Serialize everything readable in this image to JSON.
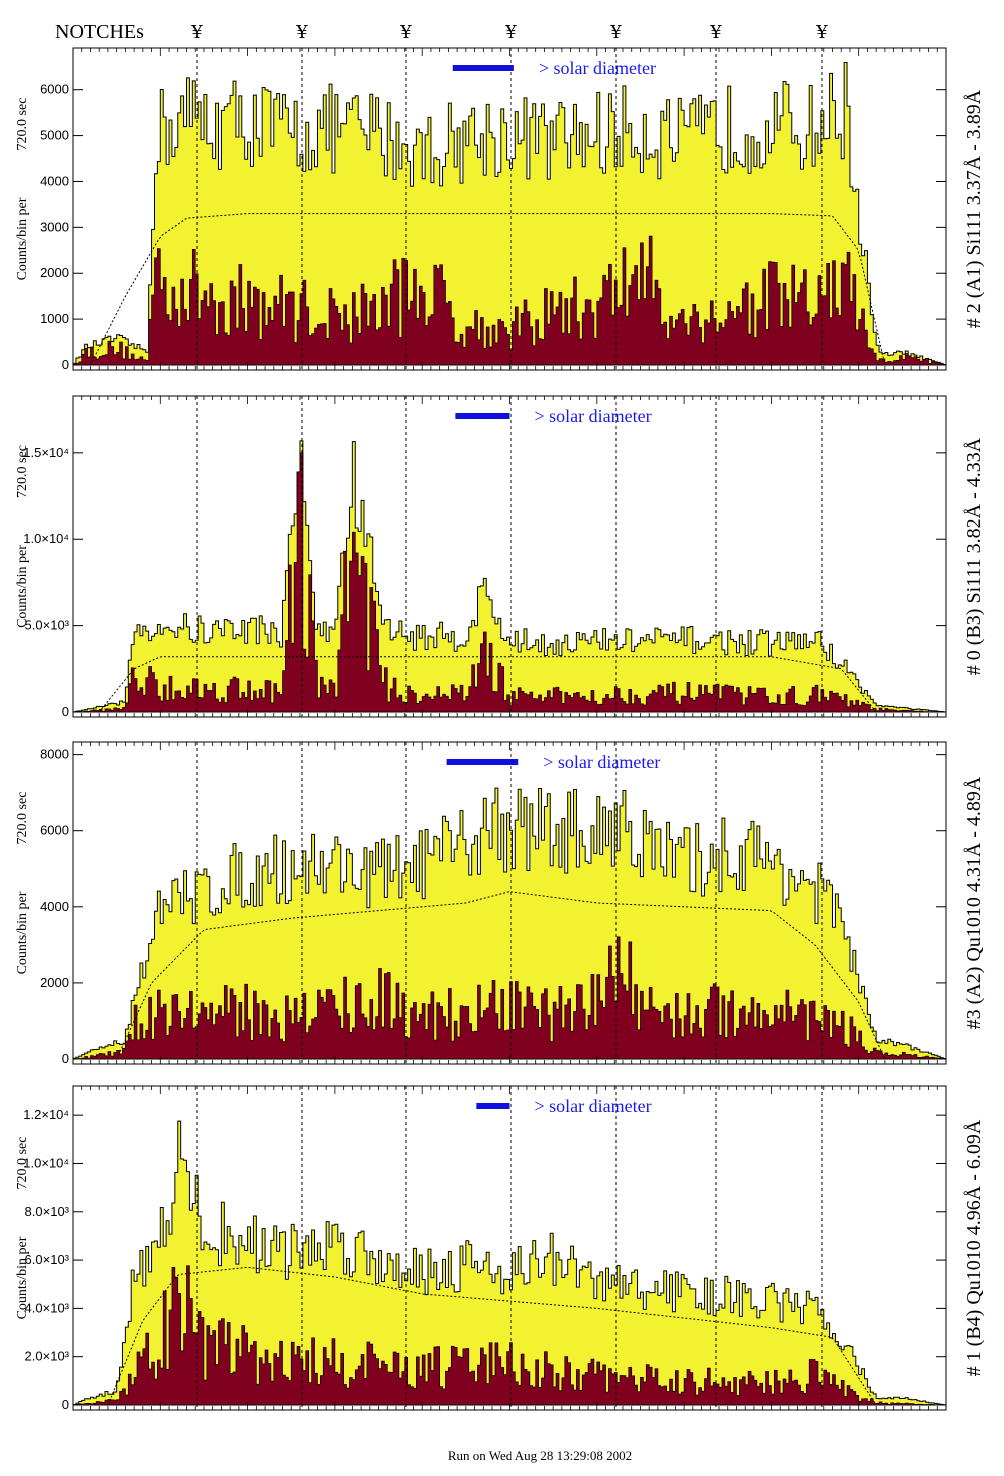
{
  "header": {
    "notches_label": "NOTCHEs",
    "notch_symbol": "¥"
  },
  "footer": {
    "run_text": "Run on Wed Aug 28 13:29:08 2002"
  },
  "colors": {
    "outer_fill": "#f2f230",
    "inner_fill": "#800020",
    "solar_bar": "#1010dd",
    "label_text": "#1a1aee"
  },
  "solar_label": "> solar diameter",
  "chart_data": [
    {
      "type": "area",
      "title": "# 2 (A1) Si111  3.37Å - 3.89Å",
      "ylabel_left": "Counts/bin per",
      "ylabel_right": "720.0 sec",
      "ylim": [
        0,
        6800
      ],
      "yticks": [
        {
          "v": 0,
          "label": "0"
        },
        {
          "v": 1000,
          "label": "1000"
        },
        {
          "v": 2000,
          "label": "2000"
        },
        {
          "v": 3000,
          "label": "3000"
        },
        {
          "v": 4000,
          "label": "4000"
        },
        {
          "v": 5000,
          "label": "5000"
        },
        {
          "v": 6000,
          "label": "6000"
        }
      ],
      "outer": {
        "x": [
          0,
          0.015,
          0.05,
          0.085,
          0.095,
          0.13,
          0.16,
          0.2,
          0.25,
          0.3,
          0.35,
          0.4,
          0.45,
          0.5,
          0.55,
          0.6,
          0.65,
          0.7,
          0.75,
          0.8,
          0.85,
          0.885,
          0.92,
          0.935,
          0.95,
          1
        ],
        "y": [
          0,
          400,
          600,
          300,
          5200,
          5600,
          5400,
          5500,
          5200,
          5300,
          5200,
          4800,
          5100,
          5200,
          5000,
          5200,
          5300,
          5000,
          5300,
          5400,
          5300,
          5800,
          400,
          200,
          300,
          0
        ]
      },
      "inner": {
        "x": [
          0,
          0.015,
          0.05,
          0.085,
          0.095,
          0.13,
          0.2,
          0.25,
          0.3,
          0.35,
          0.4,
          0.45,
          0.5,
          0.55,
          0.6,
          0.65,
          0.7,
          0.75,
          0.8,
          0.85,
          0.885,
          0.92,
          0.935,
          0.95,
          1
        ],
        "y": [
          0,
          300,
          400,
          100,
          2400,
          1800,
          1500,
          1400,
          1200,
          1400,
          2000,
          1000,
          800,
          1300,
          1400,
          2300,
          1000,
          1300,
          1600,
          1500,
          2000,
          100,
          100,
          200,
          0
        ]
      },
      "model": {
        "x": [
          0.02,
          0.06,
          0.1,
          0.13,
          0.2,
          0.5,
          0.8,
          0.87,
          0.9,
          0.93
        ],
        "y": [
          0,
          1500,
          2800,
          3200,
          3300,
          3300,
          3300,
          3250,
          2500,
          0
        ]
      },
      "solar_bar": {
        "x0": 0.435,
        "x1": 0.505
      }
    },
    {
      "type": "area",
      "title": "# 0 (B3) Si111  3.82Å - 4.33Å",
      "ylabel_left": "Counts/bin per",
      "ylabel_right": "720.0 sec",
      "ylim": [
        0,
        18000
      ],
      "yticks": [
        {
          "v": 0,
          "label": "0"
        },
        {
          "v": 5000,
          "label": "5.0×10³"
        },
        {
          "v": 10000,
          "label": "1.0×10⁴"
        },
        {
          "v": 15000,
          "label": "1.5×10⁴"
        }
      ],
      "outer": {
        "x": [
          0,
          0.03,
          0.06,
          0.07,
          0.1,
          0.15,
          0.2,
          0.24,
          0.26,
          0.28,
          0.3,
          0.32,
          0.36,
          0.4,
          0.45,
          0.47,
          0.5,
          0.55,
          0.6,
          0.7,
          0.8,
          0.85,
          0.88,
          0.92,
          0.94,
          1
        ],
        "y": [
          0,
          300,
          600,
          5000,
          5200,
          4800,
          5000,
          4800,
          16000,
          4500,
          5000,
          14000,
          4800,
          4500,
          4500,
          7200,
          4200,
          4100,
          4200,
          4300,
          4100,
          4300,
          3000,
          400,
          300,
          0
        ]
      },
      "inner": {
        "x": [
          0,
          0.03,
          0.06,
          0.07,
          0.1,
          0.15,
          0.2,
          0.24,
          0.26,
          0.28,
          0.3,
          0.32,
          0.36,
          0.4,
          0.45,
          0.47,
          0.5,
          0.55,
          0.6,
          0.7,
          0.8,
          0.85,
          0.88,
          0.92,
          0.94,
          1
        ],
        "y": [
          0,
          100,
          300,
          2200,
          1800,
          1400,
          1600,
          1200,
          13000,
          1400,
          1600,
          11000,
          1400,
          1200,
          1100,
          4000,
          1000,
          1000,
          1100,
          1200,
          1000,
          1100,
          800,
          200,
          100,
          0
        ]
      },
      "model": {
        "x": [
          0.03,
          0.07,
          0.1,
          0.5,
          0.8,
          0.88,
          0.92
        ],
        "y": [
          0,
          2500,
          3200,
          3200,
          3200,
          2500,
          0
        ]
      },
      "solar_bar": {
        "x0": 0.438,
        "x1": 0.5
      }
    },
    {
      "type": "area",
      "title": "#3 (A2) Qu1010  4.31Å - 4.89Å",
      "ylabel_left": "Counts/bin per",
      "ylabel_right": "720.0 sec",
      "ylim": [
        0,
        8200
      ],
      "yticks": [
        {
          "v": 0,
          "label": "0"
        },
        {
          "v": 2000,
          "label": "2000"
        },
        {
          "v": 4000,
          "label": "4000"
        },
        {
          "v": 6000,
          "label": "6000"
        },
        {
          "v": 8000,
          "label": "8000"
        }
      ],
      "outer": {
        "x": [
          0,
          0.03,
          0.06,
          0.07,
          0.1,
          0.15,
          0.2,
          0.25,
          0.3,
          0.35,
          0.4,
          0.45,
          0.48,
          0.5,
          0.55,
          0.6,
          0.63,
          0.65,
          0.7,
          0.75,
          0.8,
          0.85,
          0.88,
          0.92,
          0.95,
          1
        ],
        "y": [
          0,
          300,
          500,
          1800,
          4000,
          4600,
          5000,
          5200,
          5300,
          5000,
          5300,
          5700,
          6500,
          6200,
          6300,
          6000,
          6800,
          5800,
          5300,
          5600,
          5400,
          4600,
          3800,
          500,
          400,
          0
        ]
      },
      "inner": {
        "x": [
          0,
          0.06,
          0.07,
          0.1,
          0.15,
          0.2,
          0.25,
          0.3,
          0.35,
          0.4,
          0.45,
          0.5,
          0.55,
          0.6,
          0.63,
          0.65,
          0.7,
          0.75,
          0.8,
          0.85,
          0.88,
          0.92,
          1
        ],
        "y": [
          0,
          200,
          1000,
          1600,
          1300,
          1400,
          1200,
          1600,
          1700,
          1400,
          1300,
          1500,
          1300,
          1600,
          2900,
          1600,
          1300,
          1400,
          1500,
          1200,
          1000,
          200,
          0
        ]
      },
      "model": {
        "x": [
          0.05,
          0.09,
          0.15,
          0.25,
          0.45,
          0.5,
          0.6,
          0.8,
          0.85,
          0.9,
          0.93
        ],
        "y": [
          0,
          2000,
          3400,
          3700,
          4100,
          4400,
          4100,
          3900,
          3000,
          1500,
          0
        ]
      },
      "solar_bar": {
        "x0": 0.428,
        "x1": 0.51
      }
    },
    {
      "type": "area",
      "title": "# 1 (B4) Qu1010 4.96Å - 6.09Å",
      "ylabel_left": "Counts/bin per",
      "ylabel_right": "720.0 sec",
      "ylim": [
        0,
        13000
      ],
      "yticks": [
        {
          "v": 0,
          "label": "0"
        },
        {
          "v": 2000,
          "label": "2.0×10³"
        },
        {
          "v": 4000,
          "label": "4.0×10³"
        },
        {
          "v": 6000,
          "label": "6.0×10³"
        },
        {
          "v": 8000,
          "label": "8.0×10³"
        },
        {
          "v": 10000,
          "label": "1.0×10⁴"
        },
        {
          "v": 12000,
          "label": "1.2×10⁴"
        }
      ],
      "outer": {
        "x": [
          0,
          0.02,
          0.05,
          0.07,
          0.1,
          0.12,
          0.15,
          0.2,
          0.25,
          0.3,
          0.35,
          0.4,
          0.45,
          0.5,
          0.55,
          0.6,
          0.65,
          0.7,
          0.75,
          0.8,
          0.85,
          0.88,
          0.92,
          0.95,
          1
        ],
        "y": [
          0,
          300,
          600,
          5500,
          7000,
          10500,
          7500,
          7000,
          6500,
          7000,
          6200,
          5800,
          6000,
          5800,
          6200,
          5200,
          5000,
          4800,
          4600,
          4400,
          4000,
          3000,
          300,
          300,
          0
        ]
      },
      "inner": {
        "x": [
          0,
          0.05,
          0.07,
          0.1,
          0.12,
          0.15,
          0.2,
          0.25,
          0.3,
          0.35,
          0.4,
          0.45,
          0.5,
          0.55,
          0.6,
          0.65,
          0.7,
          0.75,
          0.8,
          0.85,
          0.88,
          0.92,
          1
        ],
        "y": [
          0,
          200,
          1800,
          2600,
          5500,
          2600,
          2400,
          2000,
          1900,
          1800,
          1600,
          1800,
          2000,
          1500,
          1300,
          1200,
          1100,
          1100,
          1000,
          1400,
          800,
          100,
          0
        ]
      },
      "model": {
        "x": [
          0.04,
          0.08,
          0.12,
          0.2,
          0.3,
          0.4,
          0.5,
          0.6,
          0.7,
          0.8,
          0.87,
          0.92
        ],
        "y": [
          0,
          3500,
          5400,
          5700,
          5300,
          4600,
          4300,
          4000,
          3600,
          3200,
          2800,
          0
        ]
      },
      "solar_bar": {
        "x0": 0.462,
        "x1": 0.5
      }
    }
  ]
}
